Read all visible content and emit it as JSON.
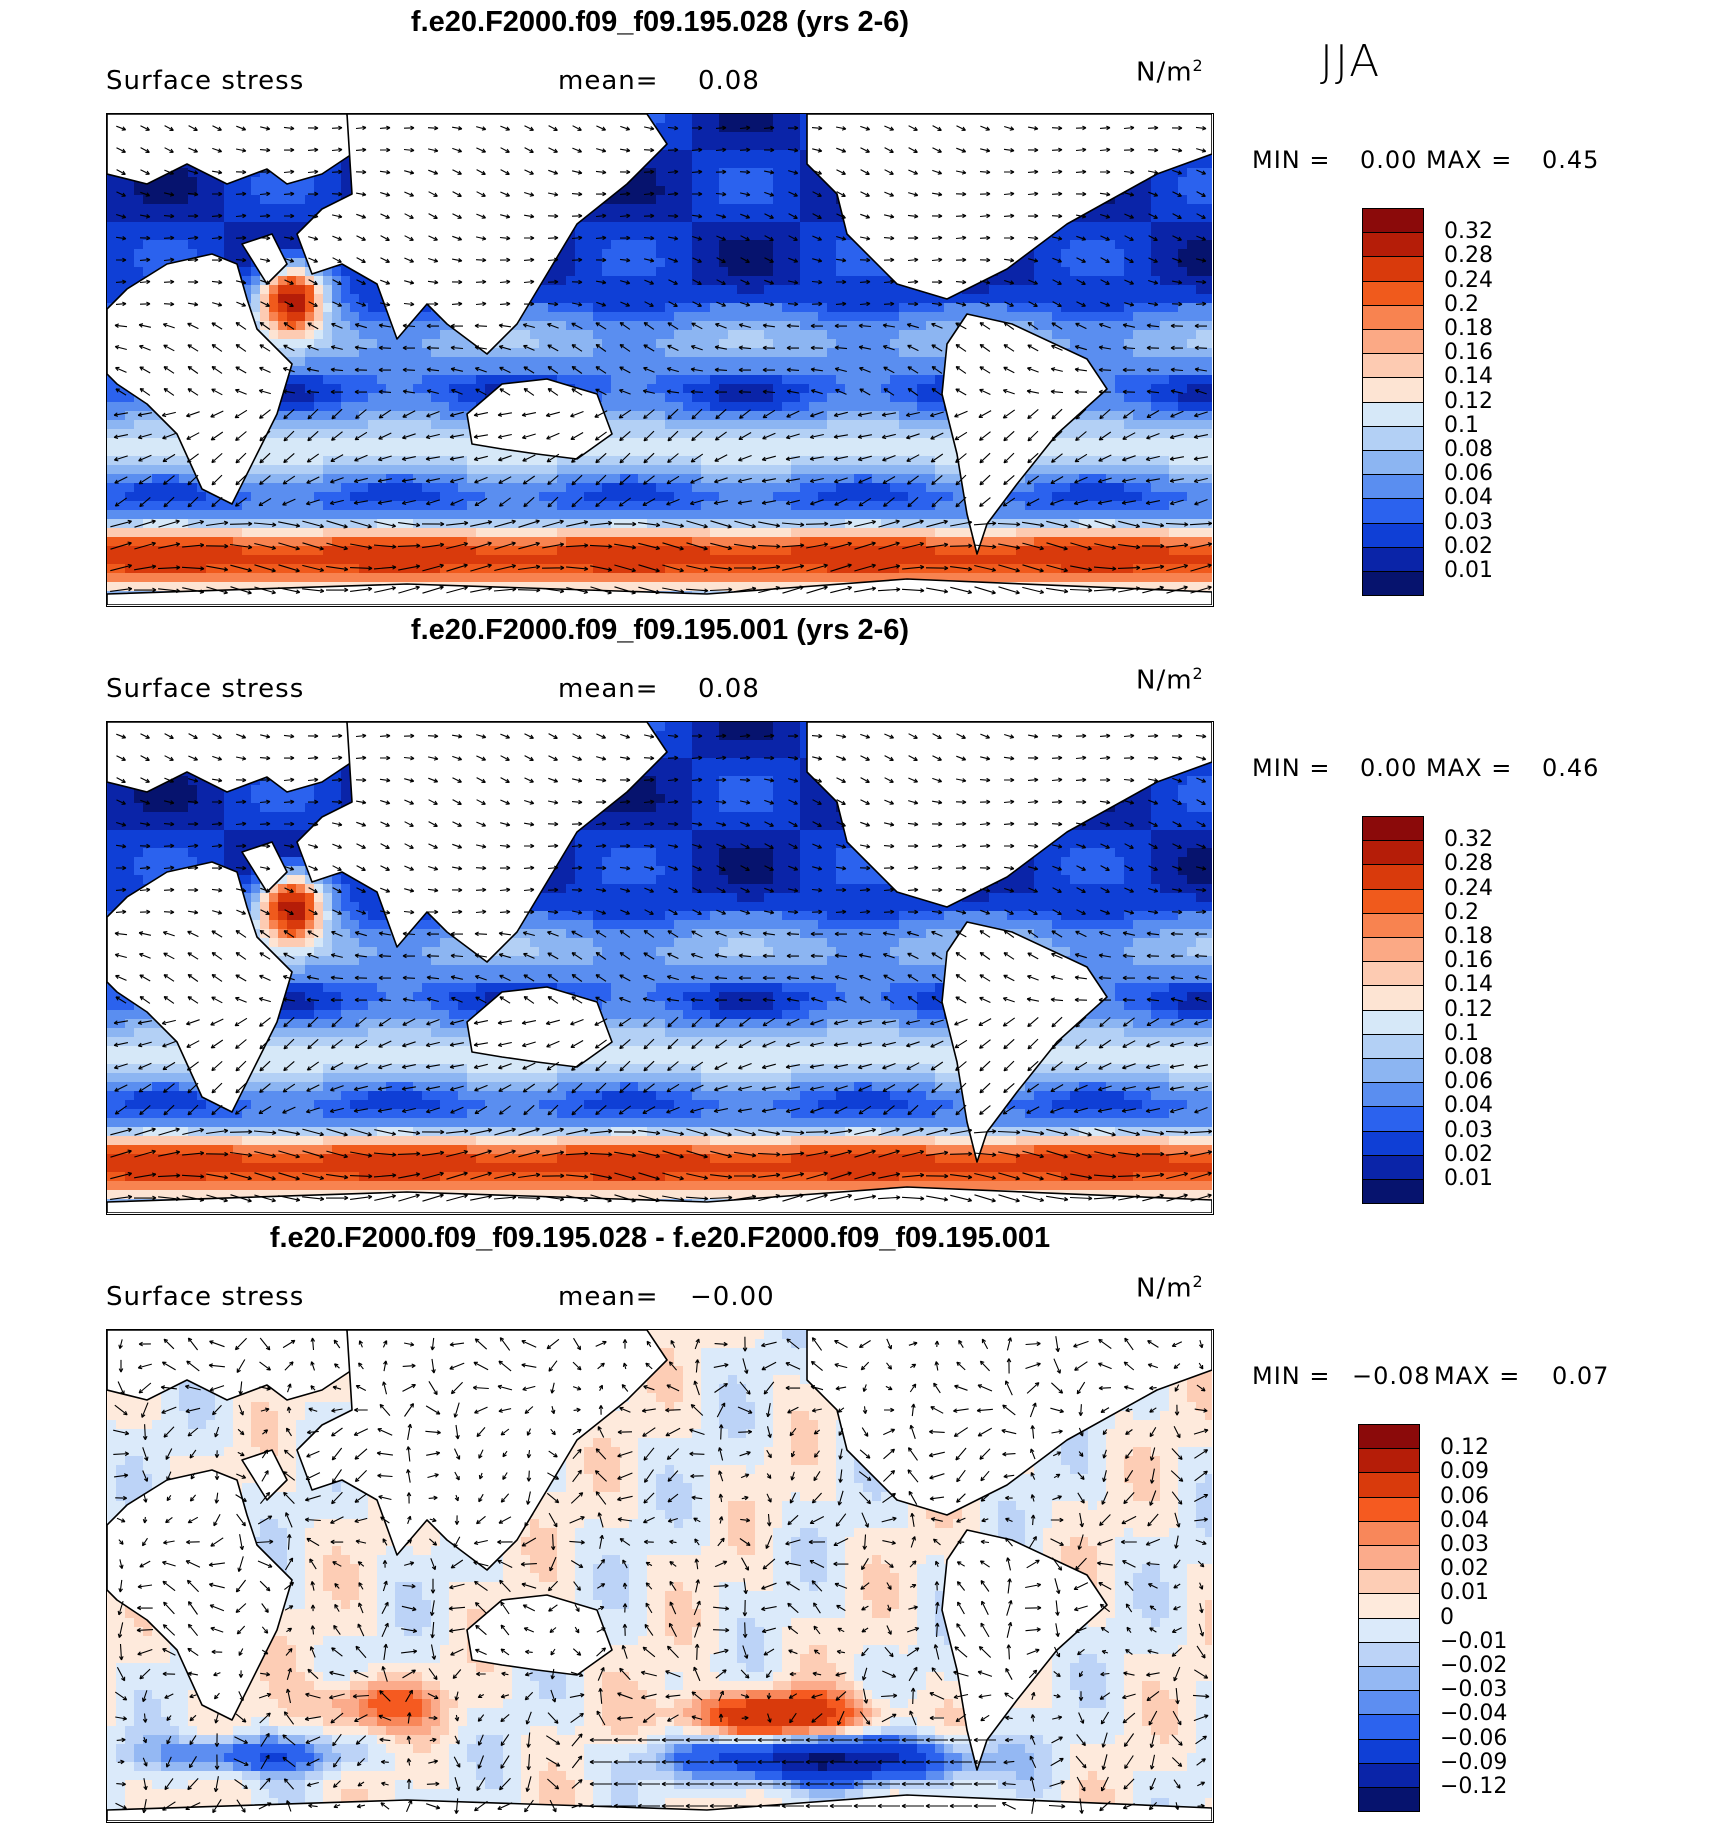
{
  "season": "JJA",
  "units_text": "N/m",
  "units_sup": "2",
  "panels": [
    {
      "title": "f.e20.F2000.f09_f09.195.028 (yrs 2-6)",
      "variable": "Surface stress",
      "mean_label": "mean=",
      "mean_value": "0.08",
      "min_label": "MIN =",
      "min_value": "0.00",
      "max_label": "MAX =",
      "max_value": "0.45",
      "kind": "abs",
      "levels": [
        "0.32",
        "0.28",
        "0.24",
        "0.2",
        "0.18",
        "0.16",
        "0.14",
        "0.12",
        "0.1",
        "0.08",
        "0.06",
        "0.04",
        "0.03",
        "0.02",
        "0.01"
      ],
      "colors": [
        "#8b0a0a",
        "#b51d08",
        "#d93a0c",
        "#f05a1c",
        "#f88350",
        "#fba985",
        "#fdcbb2",
        "#fde4d3",
        "#d6e8f8",
        "#b3d0f5",
        "#8cb5f2",
        "#5a8ef0",
        "#2b62ee",
        "#0f3fd6",
        "#0a24a8",
        "#06136e"
      ]
    },
    {
      "title": "f.e20.F2000.f09_f09.195.001 (yrs 2-6)",
      "variable": "Surface stress",
      "mean_label": "mean=",
      "mean_value": "0.08",
      "min_label": "MIN =",
      "min_value": "0.00",
      "max_label": "MAX =",
      "max_value": "0.46",
      "kind": "abs",
      "levels": [
        "0.32",
        "0.28",
        "0.24",
        "0.2",
        "0.18",
        "0.16",
        "0.14",
        "0.12",
        "0.1",
        "0.08",
        "0.06",
        "0.04",
        "0.03",
        "0.02",
        "0.01"
      ],
      "colors": [
        "#8b0a0a",
        "#b51d08",
        "#d93a0c",
        "#f05a1c",
        "#f88350",
        "#fba985",
        "#fdcbb2",
        "#fde4d3",
        "#d6e8f8",
        "#b3d0f5",
        "#8cb5f2",
        "#5a8ef0",
        "#2b62ee",
        "#0f3fd6",
        "#0a24a8",
        "#06136e"
      ]
    },
    {
      "title": "f.e20.F2000.f09_f09.195.028 - f.e20.F2000.f09_f09.195.001",
      "variable": "Surface stress",
      "mean_label": "mean=",
      "mean_value": "−0.00",
      "min_label": "MIN =",
      "min_value": "−0.08",
      "max_label": "MAX =",
      "max_value": "0.07",
      "kind": "diff",
      "levels": [
        "0.12",
        "0.09",
        "0.06",
        "0.04",
        "0.03",
        "0.02",
        "0.01",
        "0",
        "−0.01",
        "−0.02",
        "−0.03",
        "−0.04",
        "−0.06",
        "−0.09",
        "−0.12"
      ],
      "colors": [
        "#8b0a0a",
        "#b51d08",
        "#d93a0c",
        "#f55a20",
        "#f8875a",
        "#fbab8b",
        "#fdcdb5",
        "#feeadc",
        "#dbeafa",
        "#bcd3f7",
        "#94b8f3",
        "#5d8ef1",
        "#2c63ee",
        "#0f3fd6",
        "#0a24a8",
        "#06136e"
      ]
    }
  ]
}
